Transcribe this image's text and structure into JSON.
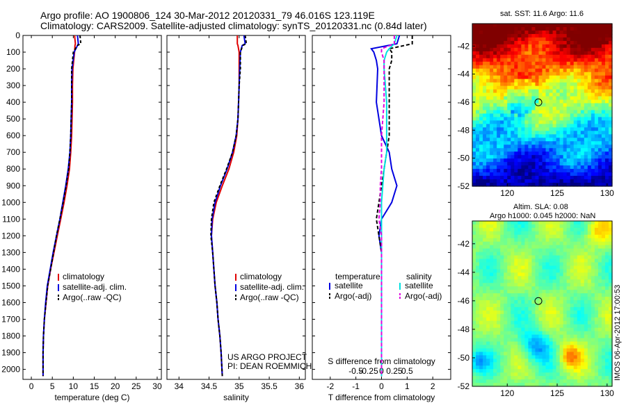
{
  "header": {
    "title_line1": "Argo profile: AO 1900806_124 30-Mar-2012 20120331_79 46.016S 123.119E",
    "title_line2": "Climatology: CARS2009. Satellite-adjusted climatology: synTS_20120331.nc (0.84d later)"
  },
  "credit": {
    "line1": "US ARGO PROJECT",
    "line2": "PI: DEAN ROEMMICH"
  },
  "stamp": "IMOS 06-Apr-2012 17:00:53",
  "colors": {
    "climatology": "#e00000",
    "satellite": "#0000e0",
    "argo": "#000000",
    "salinity_satellite": "#00e0e0",
    "salinity_argo": "#e000e0"
  },
  "chart_data": [
    {
      "type": "line",
      "xlabel": "temperature (deg C)",
      "ylabel": "",
      "xlim": [
        -2,
        31
      ],
      "ylim": [
        2060,
        0
      ],
      "xticks": [
        0,
        5,
        10,
        15,
        20,
        25,
        30
      ],
      "yticks": [
        0,
        100,
        200,
        300,
        400,
        500,
        600,
        700,
        800,
        900,
        1000,
        1100,
        1200,
        1300,
        1400,
        1500,
        1600,
        1700,
        1800,
        1900,
        2000
      ],
      "legend": [
        "climatology",
        "satellite-adj. clim.",
        "Argo(..raw -QC)"
      ],
      "series": [
        {
          "name": "climatology",
          "color": "#e00000",
          "dash": "",
          "x": [
            10.3,
            10.5,
            10.4,
            10.3,
            9.9,
            9.8,
            9.8,
            9.7,
            9.6,
            9.4,
            9.1,
            8.5,
            7.8,
            7.0,
            6.2,
            5.4,
            4.6,
            3.9,
            3.5,
            3.1,
            2.9,
            2.8,
            2.8
          ],
          "y": [
            0,
            50,
            60,
            100,
            200,
            300,
            400,
            500,
            600,
            700,
            800,
            900,
            1000,
            1100,
            1200,
            1300,
            1400,
            1500,
            1600,
            1700,
            1800,
            1900,
            2040
          ]
        },
        {
          "name": "satellite-adj. clim.",
          "color": "#0000e0",
          "dash": "",
          "x": [
            11.0,
            11.2,
            11.0,
            10.2,
            9.7,
            9.6,
            9.6,
            9.5,
            9.4,
            9.2,
            8.8,
            8.2,
            7.5,
            6.8,
            6.0,
            5.2,
            4.5,
            3.8,
            3.4,
            3.1,
            2.9,
            2.8,
            2.8
          ],
          "y": [
            0,
            50,
            60,
            100,
            200,
            300,
            400,
            500,
            600,
            700,
            800,
            900,
            1000,
            1100,
            1200,
            1300,
            1400,
            1500,
            1600,
            1700,
            1800,
            1900,
            2040
          ]
        },
        {
          "name": "Argo(..raw -QC)",
          "color": "#000000",
          "dash": "4,3",
          "x": [
            11.6,
            11.8,
            11.0,
            10.0,
            9.6,
            9.6,
            9.6,
            9.5,
            9.4,
            9.2,
            8.9,
            8.3,
            7.6,
            6.8,
            6.0,
            5.3,
            4.6,
            3.9,
            3.5,
            3.1,
            2.9,
            2.8,
            2.8
          ],
          "y": [
            0,
            50,
            60,
            100,
            200,
            300,
            400,
            500,
            600,
            700,
            800,
            900,
            1000,
            1100,
            1200,
            1300,
            1400,
            1500,
            1600,
            1700,
            1800,
            1900,
            2040
          ]
        }
      ]
    },
    {
      "type": "line",
      "xlabel": "salinity",
      "ylabel": "",
      "xlim": [
        33.8,
        36.1
      ],
      "ylim": [
        2060,
        0
      ],
      "xticks": [
        34,
        34.5,
        35,
        35.5,
        36
      ],
      "xticklabels": [
        "34",
        "34.5",
        "35",
        "35.5",
        "36"
      ],
      "legend": [
        "climatology",
        "satellite-adj. clim.",
        "Argo(..raw -QC)"
      ],
      "series": [
        {
          "name": "climatology",
          "color": "#e00000",
          "dash": "",
          "x": [
            34.97,
            34.97,
            34.98,
            35.0,
            35.0,
            35.0,
            34.99,
            34.98,
            34.96,
            34.91,
            34.83,
            34.72,
            34.62,
            34.56,
            34.54,
            34.56,
            34.58,
            34.6,
            34.63,
            34.65,
            34.68,
            34.7,
            34.72
          ],
          "y": [
            0,
            50,
            60,
            100,
            200,
            300,
            400,
            500,
            600,
            700,
            800,
            900,
            1000,
            1100,
            1200,
            1300,
            1400,
            1500,
            1600,
            1700,
            1800,
            1900,
            2040
          ]
        },
        {
          "name": "satellite-adj. clim.",
          "color": "#0000e0",
          "dash": "",
          "x": [
            35.08,
            35.1,
            35.05,
            35.02,
            35.01,
            35.0,
            34.99,
            34.98,
            34.95,
            34.89,
            34.8,
            34.69,
            34.6,
            34.55,
            34.54,
            34.56,
            34.58,
            34.6,
            34.63,
            34.65,
            34.68,
            34.7,
            34.72
          ],
          "y": [
            0,
            50,
            60,
            100,
            200,
            300,
            400,
            500,
            600,
            700,
            800,
            900,
            1000,
            1100,
            1200,
            1300,
            1400,
            1500,
            1600,
            1700,
            1800,
            1900,
            2040
          ]
        },
        {
          "name": "Argo(..raw -QC)",
          "color": "#000000",
          "dash": "4,3",
          "x": [
            35.1,
            35.12,
            35.06,
            35.02,
            35.02,
            35.0,
            34.99,
            34.98,
            34.95,
            34.89,
            34.79,
            34.68,
            34.58,
            34.54,
            34.53,
            34.56,
            34.58,
            34.6,
            34.63,
            34.65,
            34.68,
            34.7,
            34.72
          ],
          "y": [
            0,
            50,
            60,
            100,
            200,
            300,
            400,
            500,
            600,
            700,
            800,
            900,
            1000,
            1100,
            1200,
            1300,
            1400,
            1500,
            1600,
            1700,
            1800,
            1900,
            2040
          ]
        }
      ]
    },
    {
      "type": "line",
      "xlabel": "T difference from climatology",
      "top_label": "S difference from climatology",
      "xlim": [
        -2.7,
        2.7
      ],
      "ylim": [
        2060,
        0
      ],
      "xticks": [
        -2,
        -1,
        0,
        1,
        2
      ],
      "xticklabels": [
        "-2",
        "-1",
        "0",
        "1",
        "2"
      ],
      "top_ticks": [
        -0.5,
        -0.25,
        0,
        0.25,
        0.5
      ],
      "top_ticklabels": [
        "-0.5",
        "-0.25",
        "0",
        "0.25",
        "0.5"
      ],
      "legend_titles": [
        "temperature",
        "salinity"
      ],
      "legend": [
        "satellite",
        "Argo(-adj)",
        "satellite",
        "Argo(-adj)"
      ],
      "series": [
        {
          "name": "satellite",
          "group": "temperature",
          "color": "#0000e0",
          "dash": "",
          "x": [
            0.7,
            0.6,
            -0.4,
            -0.3,
            -0.2,
            -0.15,
            -0.2,
            0.0,
            0.3,
            0.4,
            0.6,
            0.4,
            0.0,
            -0.1,
            0.0,
            0.0,
            0.0,
            0.0,
            0.0,
            0.0,
            0.0,
            0.0
          ],
          "y": [
            0,
            50,
            80,
            100,
            150,
            200,
            400,
            600,
            700,
            800,
            900,
            1000,
            1100,
            1200,
            1300,
            1400,
            1500,
            1600,
            1700,
            1800,
            1900,
            2040
          ]
        },
        {
          "name": "Argo(-adj)",
          "group": "temperature",
          "color": "#000000",
          "dash": "5,3",
          "x": [
            1.2,
            1.2,
            0.3,
            0.4,
            0.4,
            0.3,
            0.3,
            0.3,
            0.2,
            0.1,
            0.0,
            -0.1,
            -0.2,
            -0.1,
            0.0,
            0.0,
            0.0,
            0.0,
            0.0,
            0.0,
            0.0,
            0.0
          ],
          "y": [
            0,
            50,
            80,
            100,
            150,
            200,
            400,
            600,
            700,
            800,
            900,
            1000,
            1100,
            1200,
            1300,
            1400,
            1500,
            1600,
            1700,
            1800,
            1900,
            2040
          ]
        },
        {
          "name": "satellite",
          "group": "salinity",
          "color": "#00e0e0",
          "dash": "",
          "x": [
            0.6,
            0.5,
            0.3,
            0.2,
            0.1,
            0.1,
            0.2,
            0.2,
            0.2,
            0.1,
            0.05,
            0.0,
            0.0,
            0.0,
            0.0,
            0.0,
            0.0,
            0.0,
            0.0,
            0.0,
            0.0,
            0.0
          ],
          "y": [
            0,
            50,
            80,
            100,
            150,
            200,
            400,
            600,
            700,
            800,
            900,
            1000,
            1100,
            1200,
            1300,
            1400,
            1500,
            1600,
            1700,
            1800,
            1900,
            2040
          ]
        },
        {
          "name": "Argo(-adj)",
          "group": "salinity",
          "color": "#e000e0",
          "dash": "5,3",
          "x": [
            0.5,
            0.5,
            0.0,
            0.0,
            0.1,
            0.1,
            0.1,
            0.0,
            0.0,
            0.0,
            -0.05,
            -0.05,
            -0.1,
            0.0,
            0.0,
            0.0,
            0.0,
            0.0,
            0.0,
            0.0,
            0.0,
            0.0
          ],
          "y": [
            0,
            50,
            80,
            100,
            150,
            200,
            400,
            600,
            700,
            800,
            900,
            1000,
            1100,
            1200,
            1300,
            1400,
            1500,
            1600,
            1700,
            1800,
            1900,
            2040
          ]
        }
      ]
    },
    {
      "type": "heatmap",
      "title": "sat. SST: 11.6 Argo: 11.6",
      "xlim": [
        116.5,
        130.5
      ],
      "ylim": [
        -52,
        -40.4
      ],
      "xticks": [
        120,
        125,
        130
      ],
      "yticks": [
        -42,
        -44,
        -46,
        -48,
        -50,
        -52
      ],
      "marker": {
        "lon": 123.119,
        "lat": -46.016
      },
      "field": "sst"
    },
    {
      "type": "heatmap",
      "title_line1": "Altim. SLA: 0.08",
      "title_line2": "Argo h1000: 0.045 h2000: NaN",
      "xlim": [
        116.5,
        130.5
      ],
      "ylim": [
        -52,
        -40.4
      ],
      "xticks": [
        120,
        125,
        130
      ],
      "yticks": [
        -42,
        -44,
        -46,
        -48,
        -50,
        -52
      ],
      "marker": {
        "lon": 123.119,
        "lat": -46.016
      },
      "field": "sla"
    }
  ]
}
